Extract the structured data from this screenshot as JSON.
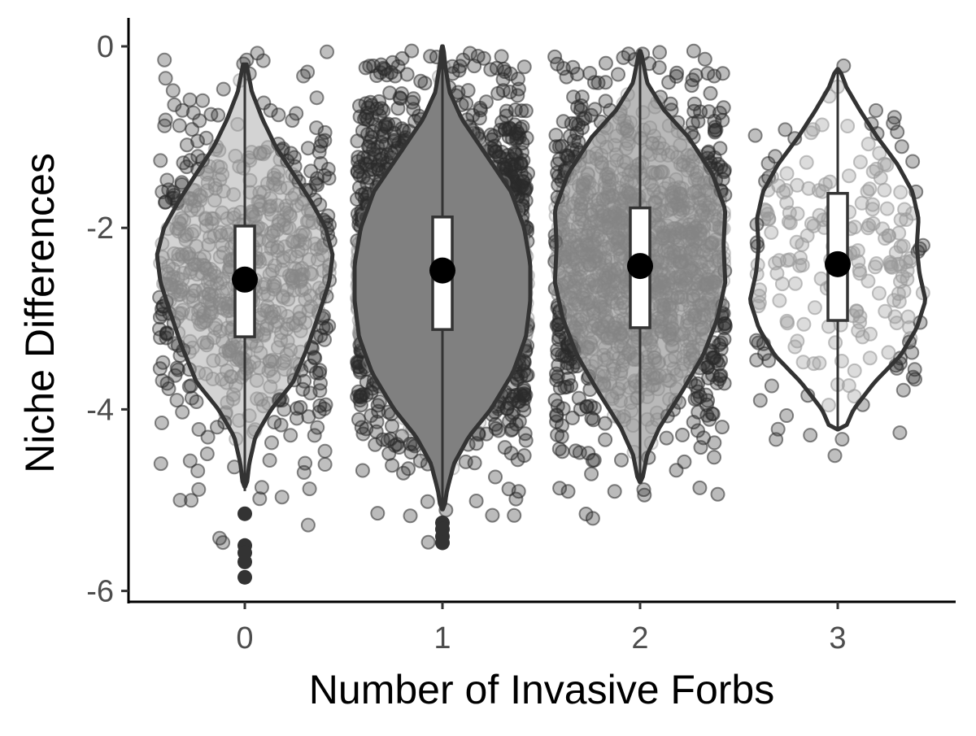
{
  "chart_data": {
    "type": "violin",
    "title": "",
    "xlabel": "Number of Invasive Forbs",
    "ylabel": "Niche Differences",
    "categories": [
      "0",
      "1",
      "2",
      "3"
    ],
    "ylim": [
      -6.1,
      0.3
    ],
    "yticks": [
      0,
      -2,
      -4,
      -6
    ],
    "ytick_labels": [
      "0",
      "-2",
      "-4",
      "-6"
    ],
    "grid": false,
    "legend": "none",
    "groups": [
      {
        "category": "0",
        "n_points": 700,
        "fill": "#808080",
        "fill_opacity": 0.25,
        "violin_range": [
          -4.85,
          -0.2
        ],
        "violin_shape": [
          [
            -4.85,
            0.02
          ],
          [
            -4.6,
            0.05
          ],
          [
            -4.3,
            0.12
          ],
          [
            -4.0,
            0.3
          ],
          [
            -3.7,
            0.55
          ],
          [
            -3.3,
            0.72
          ],
          [
            -2.9,
            0.86
          ],
          [
            -2.6,
            0.96
          ],
          [
            -2.3,
            1.0
          ],
          [
            -2.0,
            0.92
          ],
          [
            -1.7,
            0.75
          ],
          [
            -1.4,
            0.55
          ],
          [
            -1.1,
            0.35
          ],
          [
            -0.8,
            0.2
          ],
          [
            -0.5,
            0.08
          ],
          [
            -0.2,
            0.02
          ]
        ],
        "box": {
          "q1": -3.2,
          "median": -2.55,
          "q3": -1.98,
          "whisker_low": -4.9,
          "whisker_high": -0.2
        },
        "mean": -2.57,
        "outliers": [
          -5.15,
          -5.5,
          -5.58,
          -5.68,
          -5.85
        ]
      },
      {
        "category": "1",
        "n_points": 2500,
        "fill": "#808080",
        "fill_opacity": 1,
        "violin_range": [
          -5.1,
          0.0
        ],
        "violin_shape": [
          [
            -5.1,
            0.02
          ],
          [
            -4.9,
            0.05
          ],
          [
            -4.6,
            0.13
          ],
          [
            -4.3,
            0.3
          ],
          [
            -4.0,
            0.55
          ],
          [
            -3.6,
            0.8
          ],
          [
            -3.2,
            0.95
          ],
          [
            -2.8,
            1.0
          ],
          [
            -2.4,
            1.0
          ],
          [
            -2.0,
            0.93
          ],
          [
            -1.6,
            0.78
          ],
          [
            -1.2,
            0.5
          ],
          [
            -0.8,
            0.22
          ],
          [
            -0.5,
            0.08
          ],
          [
            -0.2,
            0.03
          ],
          [
            0.0,
            0.01
          ]
        ],
        "box": {
          "q1": -3.12,
          "median": -2.45,
          "q3": -1.88,
          "whisker_low": -5.1,
          "whisker_high": 0.0
        },
        "mean": -2.47,
        "outliers": [
          -5.25,
          -5.32,
          -5.4,
          -5.47
        ]
      },
      {
        "category": "2",
        "n_points": 1400,
        "fill": "#808080",
        "fill_opacity": 0.85,
        "violin_range": [
          -4.8,
          -0.05
        ],
        "violin_shape": [
          [
            -4.8,
            0.02
          ],
          [
            -4.5,
            0.08
          ],
          [
            -4.2,
            0.22
          ],
          [
            -3.8,
            0.48
          ],
          [
            -3.4,
            0.72
          ],
          [
            -3.0,
            0.88
          ],
          [
            -2.6,
            0.97
          ],
          [
            -2.2,
            0.95
          ],
          [
            -1.8,
            0.97
          ],
          [
            -1.4,
            0.82
          ],
          [
            -1.0,
            0.55
          ],
          [
            -0.7,
            0.27
          ],
          [
            -0.4,
            0.08
          ],
          [
            -0.05,
            0.01
          ]
        ],
        "box": {
          "q1": -3.1,
          "median": -2.4,
          "q3": -1.78,
          "whisker_low": -4.8,
          "whisker_high": -0.05
        },
        "mean": -2.42,
        "outliers": []
      },
      {
        "category": "3",
        "n_points": 220,
        "fill": "#ffffff",
        "fill_opacity": 1,
        "violin_range": [
          -4.22,
          -0.25
        ],
        "violin_shape": [
          [
            -4.22,
            0.08
          ],
          [
            -4.0,
            0.18
          ],
          [
            -3.7,
            0.42
          ],
          [
            -3.4,
            0.72
          ],
          [
            -3.1,
            0.9
          ],
          [
            -2.8,
            1.0
          ],
          [
            -2.5,
            0.93
          ],
          [
            -2.2,
            0.9
          ],
          [
            -1.9,
            0.92
          ],
          [
            -1.6,
            0.85
          ],
          [
            -1.3,
            0.68
          ],
          [
            -1.0,
            0.45
          ],
          [
            -0.7,
            0.25
          ],
          [
            -0.45,
            0.1
          ],
          [
            -0.25,
            0.02
          ]
        ],
        "box": {
          "q1": -3.02,
          "median": -2.4,
          "q3": -1.62,
          "whisker_low": -4.22,
          "whisker_high": -0.25
        },
        "mean": -2.4,
        "outliers": []
      }
    ]
  }
}
